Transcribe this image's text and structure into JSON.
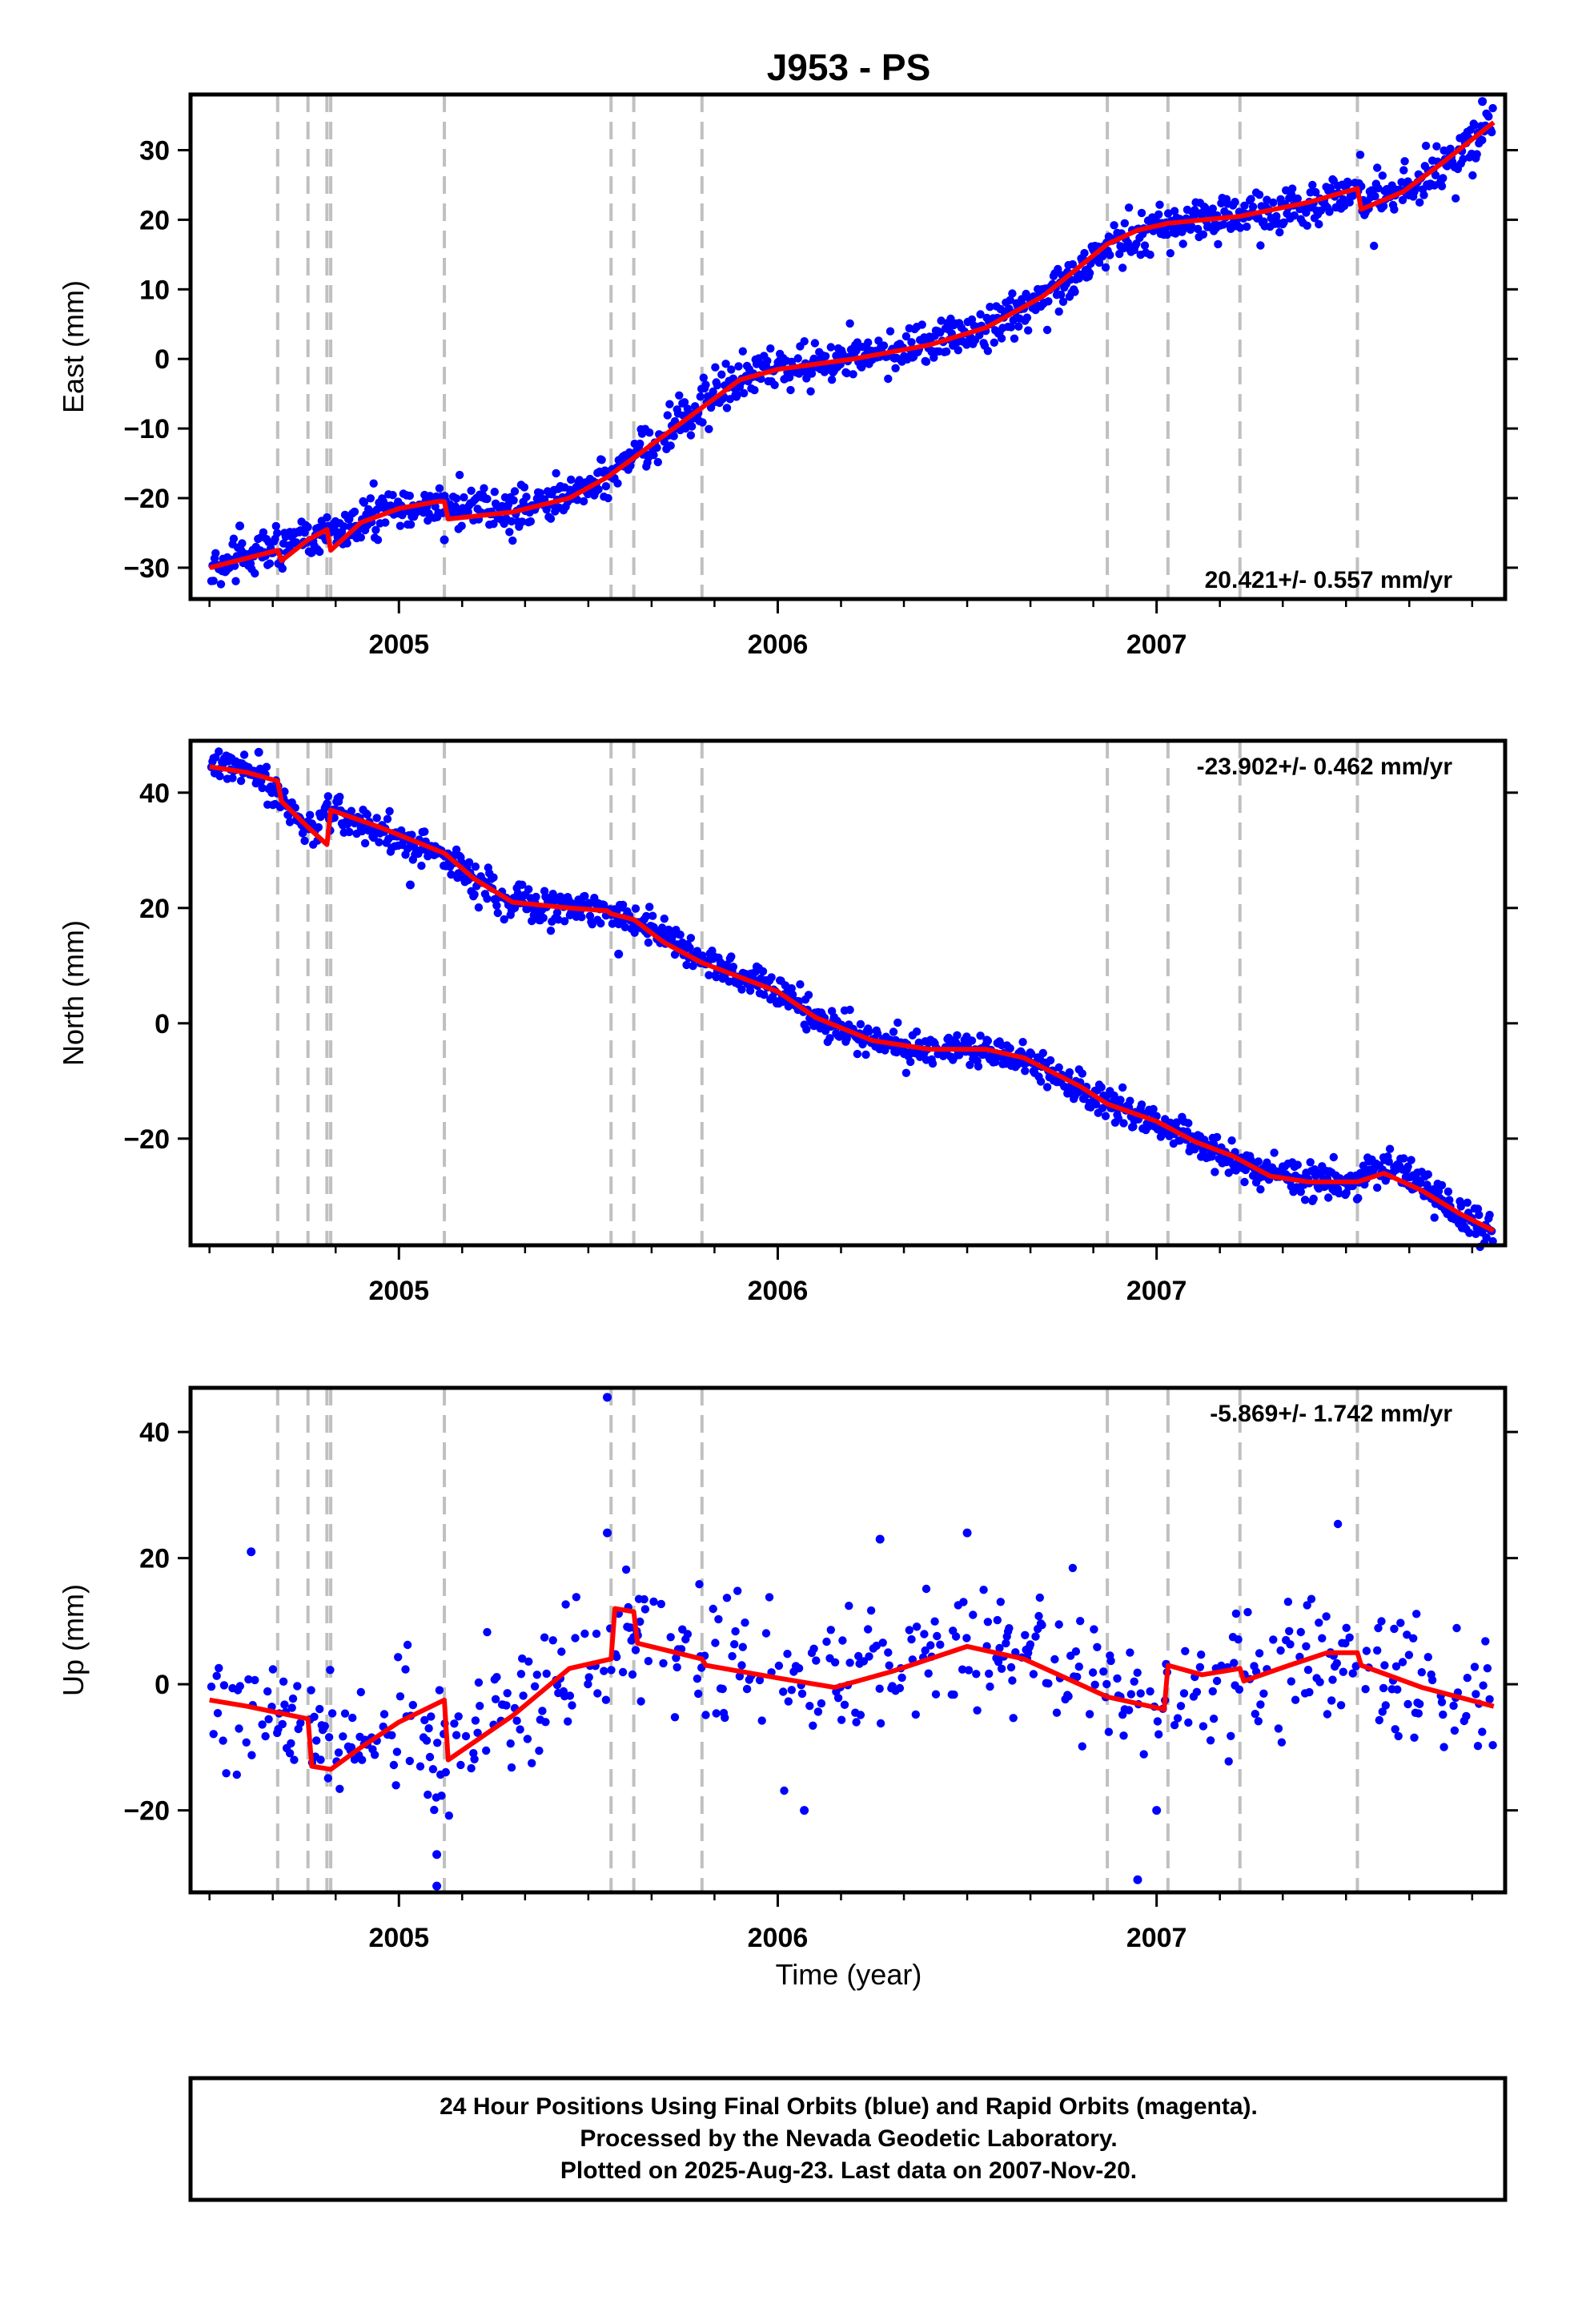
{
  "title": "J953 - PS",
  "colors": {
    "points": "#0000ff",
    "model": "#ff0000",
    "breaks": "#c0c0c0",
    "frame": "#000000"
  },
  "chart_data": [
    {
      "type": "scatter",
      "ylabel": "East (mm)",
      "ylim": [
        -34.5,
        38
      ],
      "yticks": [
        -30,
        -20,
        -10,
        0,
        10,
        20,
        30
      ],
      "rate_label": "20.421+/- 0.557 mm/yr",
      "rate_position": "bottom-right",
      "series": [
        {
          "values_model": [
            [
              2004.5,
              -30
            ],
            [
              2004.68,
              -27.5
            ],
            [
              2004.69,
              -29
            ],
            [
              2004.76,
              -26
            ],
            [
              2004.81,
              -24.5
            ],
            [
              2004.82,
              -27.5
            ],
            [
              2004.9,
              -23.5
            ],
            [
              2005.0,
              -21.5
            ],
            [
              2005.1,
              -20.5
            ],
            [
              2005.12,
              -20.5
            ],
            [
              2005.13,
              -23
            ],
            [
              2005.3,
              -22
            ],
            [
              2005.45,
              -20
            ],
            [
              2005.55,
              -17
            ],
            [
              2005.6,
              -15
            ],
            [
              2005.7,
              -11
            ],
            [
              2005.8,
              -7
            ],
            [
              2005.9,
              -3
            ],
            [
              2006.0,
              -1.5
            ],
            [
              2006.2,
              0
            ],
            [
              2006.4,
              2
            ],
            [
              2006.55,
              4.5
            ],
            [
              2006.7,
              9
            ],
            [
              2006.87,
              16.5
            ],
            [
              2006.95,
              18.5
            ],
            [
              2007.03,
              19.5
            ],
            [
              2007.22,
              20.5
            ],
            [
              2007.4,
              22.5
            ],
            [
              2007.53,
              24.5
            ],
            [
              2007.54,
              21.5
            ],
            [
              2007.65,
              24
            ],
            [
              2007.75,
              28
            ],
            [
              2007.89,
              34
            ]
          ]
        }
      ],
      "anchors": [
        [
          2004.5,
          -30
        ],
        [
          2004.6,
          -28
        ],
        [
          2004.68,
          -27
        ],
        [
          2004.8,
          -25
        ],
        [
          2004.9,
          -23.5
        ],
        [
          2005.0,
          -21.5
        ],
        [
          2005.12,
          -21
        ],
        [
          2005.3,
          -22
        ],
        [
          2005.45,
          -19.5
        ],
        [
          2005.55,
          -17
        ],
        [
          2005.65,
          -13
        ],
        [
          2005.75,
          -9
        ],
        [
          2005.85,
          -5
        ],
        [
          2005.95,
          -2
        ],
        [
          2006.1,
          -0.5
        ],
        [
          2006.3,
          1
        ],
        [
          2006.5,
          3.5
        ],
        [
          2006.6,
          5.5
        ],
        [
          2006.75,
          10.5
        ],
        [
          2006.87,
          16.5
        ],
        [
          2007.0,
          19
        ],
        [
          2007.2,
          20.5
        ],
        [
          2007.35,
          21.5
        ],
        [
          2007.52,
          24
        ],
        [
          2007.55,
          22
        ],
        [
          2007.7,
          25.5
        ],
        [
          2007.8,
          29.5
        ],
        [
          2007.89,
          35
        ]
      ],
      "noise": 1.4,
      "outliers": [
        [
          2004.58,
          -24
        ],
        [
          2005.12,
          -26
        ],
        [
          2007.86,
          37
        ]
      ]
    },
    {
      "type": "scatter",
      "ylabel": "North (mm)",
      "ylim": [
        -38.5,
        49
      ],
      "yticks": [
        -20,
        0,
        20,
        40
      ],
      "rate_label": "-23.902+/- 0.462 mm/yr",
      "rate_position": "top-right",
      "series": [
        {
          "values_model": [
            [
              2004.5,
              44.5
            ],
            [
              2004.6,
              43.5
            ],
            [
              2004.68,
              42
            ],
            [
              2004.69,
              38.5
            ],
            [
              2004.76,
              34
            ],
            [
              2004.81,
              31
            ],
            [
              2004.82,
              37
            ],
            [
              2004.95,
              34
            ],
            [
              2005.12,
              29.5
            ],
            [
              2005.2,
              25
            ],
            [
              2005.3,
              21
            ],
            [
              2005.45,
              20
            ],
            [
              2005.55,
              19.5
            ],
            [
              2005.56,
              19
            ],
            [
              2005.62,
              18
            ],
            [
              2005.7,
              14
            ],
            [
              2005.8,
              10.5
            ],
            [
              2006.0,
              5.5
            ],
            [
              2006.1,
              1
            ],
            [
              2006.25,
              -3
            ],
            [
              2006.4,
              -4.5
            ],
            [
              2006.55,
              -4.5
            ],
            [
              2006.65,
              -6
            ],
            [
              2006.8,
              -11
            ],
            [
              2006.87,
              -14
            ],
            [
              2007.0,
              -17
            ],
            [
              2007.1,
              -20.5
            ],
            [
              2007.2,
              -23
            ],
            [
              2007.3,
              -26.5
            ],
            [
              2007.4,
              -27.5
            ],
            [
              2007.53,
              -27.5
            ],
            [
              2007.6,
              -26
            ],
            [
              2007.7,
              -29
            ],
            [
              2007.8,
              -33
            ],
            [
              2007.89,
              -36
            ]
          ]
        }
      ],
      "anchors": [
        [
          2004.5,
          45
        ],
        [
          2004.6,
          44
        ],
        [
          2004.68,
          40
        ],
        [
          2004.76,
          33
        ],
        [
          2004.82,
          36.5
        ],
        [
          2004.95,
          33.5
        ],
        [
          2005.12,
          29
        ],
        [
          2005.2,
          25
        ],
        [
          2005.3,
          21
        ],
        [
          2005.5,
          20
        ],
        [
          2005.6,
          19
        ],
        [
          2005.7,
          15
        ],
        [
          2005.8,
          11
        ],
        [
          2006.0,
          5.5
        ],
        [
          2006.1,
          1
        ],
        [
          2006.25,
          -3
        ],
        [
          2006.4,
          -4.5
        ],
        [
          2006.6,
          -5
        ],
        [
          2006.75,
          -10
        ],
        [
          2006.87,
          -14
        ],
        [
          2007.0,
          -17
        ],
        [
          2007.1,
          -20.5
        ],
        [
          2007.25,
          -25
        ],
        [
          2007.4,
          -27.5
        ],
        [
          2007.53,
          -27
        ],
        [
          2007.6,
          -24
        ],
        [
          2007.7,
          -28
        ],
        [
          2007.8,
          -33
        ],
        [
          2007.89,
          -36.5
        ]
      ],
      "noise": 1.3,
      "outliers": [
        [
          2005.58,
          12
        ],
        [
          2004.63,
          47
        ],
        [
          2005.03,
          24
        ]
      ]
    },
    {
      "type": "scatter",
      "xlabel": "Time (year)",
      "ylabel": "Up (mm)",
      "ylim": [
        -33,
        47
      ],
      "yticks": [
        -20,
        0,
        20,
        40
      ],
      "rate_label": "-5.869+/- 1.742 mm/yr",
      "rate_position": "top-right",
      "series": [
        {
          "values_model": [
            [
              2004.5,
              -2.5
            ],
            [
              2004.6,
              -3.5
            ],
            [
              2004.68,
              -4.5
            ],
            [
              2004.76,
              -5.5
            ],
            [
              2004.77,
              -13
            ],
            [
              2004.82,
              -13.5
            ],
            [
              2004.9,
              -10
            ],
            [
              2005.0,
              -6
            ],
            [
              2005.12,
              -2.5
            ],
            [
              2005.13,
              -12
            ],
            [
              2005.3,
              -5
            ],
            [
              2005.45,
              2.5
            ],
            [
              2005.56,
              4
            ],
            [
              2005.57,
              12
            ],
            [
              2005.62,
              11.5
            ],
            [
              2005.63,
              6.5
            ],
            [
              2005.8,
              4
            ],
            [
              2005.81,
              3
            ],
            [
              2006.0,
              1
            ],
            [
              2006.15,
              -0.5
            ],
            [
              2006.3,
              2
            ],
            [
              2006.5,
              6
            ],
            [
              2006.65,
              4
            ],
            [
              2006.87,
              -2
            ],
            [
              2007.02,
              -4
            ],
            [
              2007.03,
              3
            ],
            [
              2007.12,
              1.5
            ],
            [
              2007.22,
              2.5
            ],
            [
              2007.23,
              0.5
            ],
            [
              2007.35,
              3
            ],
            [
              2007.45,
              5
            ],
            [
              2007.53,
              5
            ],
            [
              2007.54,
              3
            ],
            [
              2007.7,
              -0.5
            ],
            [
              2007.89,
              -3.5
            ]
          ]
        }
      ],
      "anchors": [
        [
          2004.5,
          -3
        ],
        [
          2004.75,
          -7
        ],
        [
          2004.82,
          -11
        ],
        [
          2005.0,
          -6
        ],
        [
          2005.13,
          -10
        ],
        [
          2005.3,
          -4
        ],
        [
          2005.5,
          4
        ],
        [
          2005.6,
          9
        ],
        [
          2005.75,
          4
        ],
        [
          2006.0,
          1
        ],
        [
          2006.2,
          1
        ],
        [
          2006.5,
          7
        ],
        [
          2006.7,
          3
        ],
        [
          2006.9,
          -1
        ],
        [
          2007.02,
          -2
        ],
        [
          2007.1,
          2
        ],
        [
          2007.3,
          2.5
        ],
        [
          2007.5,
          6
        ],
        [
          2007.7,
          0
        ],
        [
          2007.89,
          -3
        ]
      ],
      "noise": 5.0,
      "outliers": [
        [
          2004.61,
          21
        ],
        [
          2005.55,
          45.5
        ],
        [
          2005.55,
          24
        ],
        [
          2006.27,
          23
        ],
        [
          2006.5,
          24
        ],
        [
          2006.95,
          -31
        ],
        [
          2005.1,
          -32
        ],
        [
          2005.1,
          -27
        ],
        [
          2006.07,
          -20
        ],
        [
          2007.0,
          -20
        ]
      ]
    }
  ],
  "shared": {
    "xlim": [
      2004.45,
      2007.92
    ],
    "xticks": [
      2005,
      2006,
      2007
    ],
    "xtick_labels": [
      "2005",
      "2006",
      "2007"
    ],
    "minor_xticks": [
      2004.5,
      2004.667,
      2004.833,
      2005.167,
      2005.333,
      2005.5,
      2005.667,
      2005.833,
      2006.167,
      2006.333,
      2006.5,
      2006.667,
      2006.833,
      2007.167,
      2007.333,
      2007.5,
      2007.667,
      2007.833
    ],
    "break_years": [
      2004.68,
      2004.76,
      2004.81,
      2004.82,
      2005.12,
      2005.56,
      2005.62,
      2005.8,
      2006.87,
      2007.03,
      2007.22,
      2007.53
    ]
  },
  "footer": {
    "line1": "24 Hour Positions Using Final Orbits (blue) and Rapid Orbits (magenta).",
    "line2": "Processed by the Nevada Geodetic Laboratory.",
    "line3": "Plotted on 2025-Aug-23. Last data on 2007-Nov-20."
  }
}
